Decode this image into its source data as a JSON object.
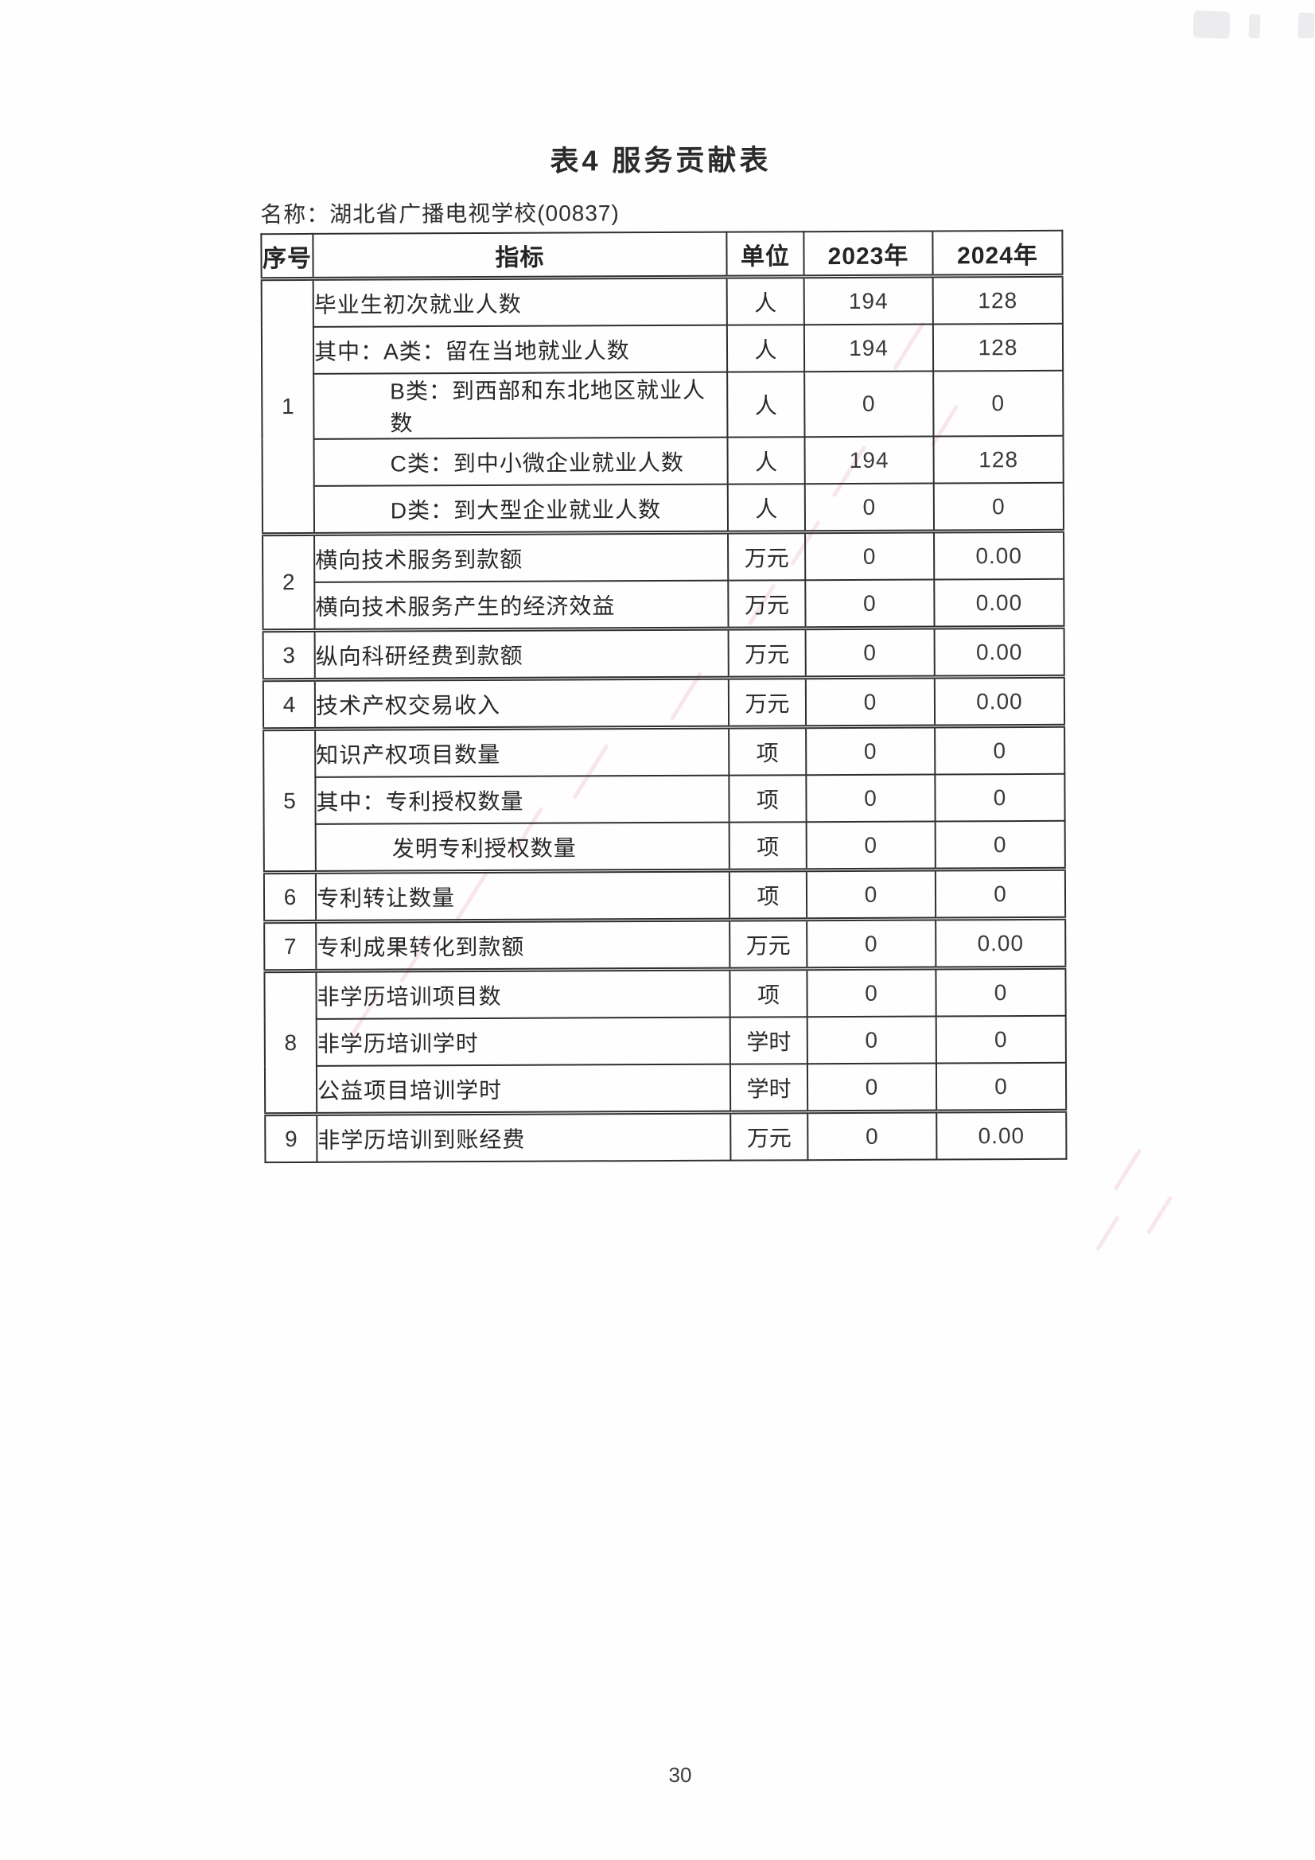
{
  "document": {
    "title": "表4 服务贡献表",
    "name_line": "名称：湖北省广播电视学校(00837)",
    "page_number": "30"
  },
  "table": {
    "columns": [
      "序号",
      "指标",
      "单位",
      "2023年",
      "2024年"
    ],
    "sections": [
      {
        "no": "1",
        "rows": [
          {
            "indicator": "毕业生初次就业人数",
            "indent": false,
            "unit": "人",
            "y2023": "194",
            "y2024": "128"
          },
          {
            "indicator": "其中：A类：留在当地就业人数",
            "indent": false,
            "unit": "人",
            "y2023": "194",
            "y2024": "128"
          },
          {
            "indicator": "B类：到西部和东北地区就业人数",
            "indent": true,
            "unit": "人",
            "y2023": "0",
            "y2024": "0"
          },
          {
            "indicator": "C类：到中小微企业就业人数",
            "indent": true,
            "unit": "人",
            "y2023": "194",
            "y2024": "128"
          },
          {
            "indicator": "D类：到大型企业就业人数",
            "indent": true,
            "unit": "人",
            "y2023": "0",
            "y2024": "0"
          }
        ]
      },
      {
        "no": "2",
        "rows": [
          {
            "indicator": "横向技术服务到款额",
            "indent": false,
            "unit": "万元",
            "y2023": "0",
            "y2024": "0.00"
          },
          {
            "indicator": "横向技术服务产生的经济效益",
            "indent": false,
            "unit": "万元",
            "y2023": "0",
            "y2024": "0.00"
          }
        ]
      },
      {
        "no": "3",
        "rows": [
          {
            "indicator": "纵向科研经费到款额",
            "indent": false,
            "unit": "万元",
            "y2023": "0",
            "y2024": "0.00"
          }
        ]
      },
      {
        "no": "4",
        "rows": [
          {
            "indicator": "技术产权交易收入",
            "indent": false,
            "unit": "万元",
            "y2023": "0",
            "y2024": "0.00"
          }
        ]
      },
      {
        "no": "5",
        "rows": [
          {
            "indicator": "知识产权项目数量",
            "indent": false,
            "unit": "项",
            "y2023": "0",
            "y2024": "0"
          },
          {
            "indicator": "其中：专利授权数量",
            "indent": false,
            "unit": "项",
            "y2023": "0",
            "y2024": "0"
          },
          {
            "indicator": "发明专利授权数量",
            "indent": true,
            "unit": "项",
            "y2023": "0",
            "y2024": "0"
          }
        ]
      },
      {
        "no": "6",
        "rows": [
          {
            "indicator": "专利转让数量",
            "indent": false,
            "unit": "项",
            "y2023": "0",
            "y2024": "0"
          }
        ]
      },
      {
        "no": "7",
        "rows": [
          {
            "indicator": "专利成果转化到款额",
            "indent": false,
            "unit": "万元",
            "y2023": "0",
            "y2024": "0.00"
          }
        ]
      },
      {
        "no": "8",
        "rows": [
          {
            "indicator": "非学历培训项目数",
            "indent": false,
            "unit": "项",
            "y2023": "0",
            "y2024": "0"
          },
          {
            "indicator": "非学历培训学时",
            "indent": false,
            "unit": "学时",
            "y2023": "0",
            "y2024": "0"
          },
          {
            "indicator": "公益项目培训学时",
            "indent": false,
            "unit": "学时",
            "y2023": "0",
            "y2024": "0"
          }
        ]
      },
      {
        "no": "9",
        "rows": [
          {
            "indicator": "非学历培训到账经费",
            "indent": false,
            "unit": "万元",
            "y2023": "0",
            "y2024": "0.00"
          }
        ]
      }
    ]
  }
}
